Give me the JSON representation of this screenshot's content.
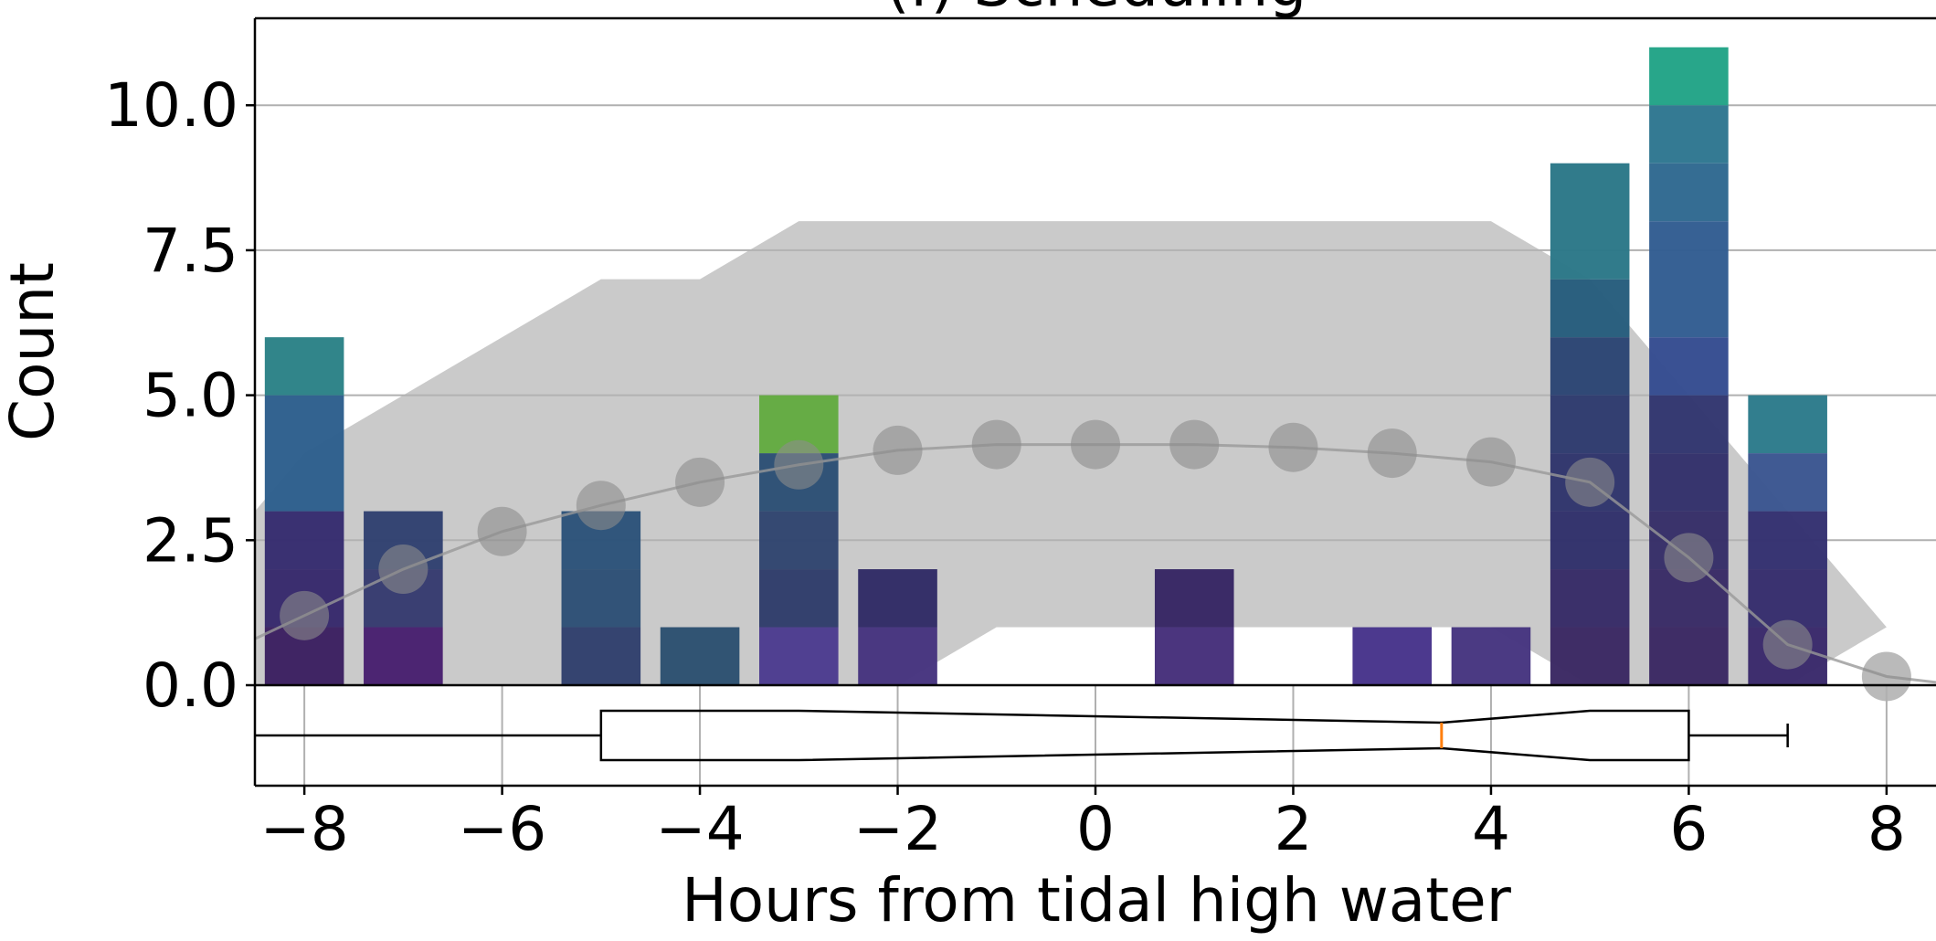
{
  "chart_data": {
    "type": "bar",
    "title": "(f) Scheduling",
    "xlabel": "Hours from tidal high water",
    "ylabel": "Count",
    "xlim": [
      -8.5,
      8.5
    ],
    "ylim": [
      0,
      11.5
    ],
    "grid": "horizontal on main panel, vertical on boxplot panel",
    "x_ticks": [
      "−8",
      "−6",
      "−4",
      "−2",
      "0",
      "2",
      "4",
      "6",
      "8"
    ],
    "x_tick_values": [
      -8,
      -6,
      -4,
      -2,
      0,
      2,
      4,
      6,
      8
    ],
    "y_ticks": [
      "0.0",
      "2.5",
      "5.0",
      "7.5",
      "10.0"
    ],
    "y_tick_values": [
      0,
      2.5,
      5,
      7.5,
      10
    ],
    "bars": [
      {
        "x": -8,
        "total": 6,
        "segments": [
          {
            "upto": 1,
            "color": "#3b1f60"
          },
          {
            "upto": 2,
            "color": "#36286b"
          },
          {
            "upto": 3,
            "color": "#352b6e"
          },
          {
            "upto": 5,
            "color": "#2c5e8c"
          },
          {
            "upto": 6,
            "color": "#2a8186"
          }
        ]
      },
      {
        "x": -7,
        "total": 3,
        "segments": [
          {
            "upto": 1,
            "color": "#471f6e"
          },
          {
            "upto": 2,
            "color": "#353a6e"
          },
          {
            "upto": 3,
            "color": "#30406f"
          }
        ]
      },
      {
        "x": -5,
        "total": 3,
        "segments": [
          {
            "upto": 1,
            "color": "#2f3f6c"
          },
          {
            "upto": 2,
            "color": "#2c4e75"
          },
          {
            "upto": 3,
            "color": "#2b5279"
          }
        ]
      },
      {
        "x": -4,
        "total": 1,
        "segments": [
          {
            "upto": 1,
            "color": "#2b5070"
          }
        ]
      },
      {
        "x": -3,
        "total": 5,
        "segments": [
          {
            "upto": 1,
            "color": "#4b3b8e"
          },
          {
            "upto": 2,
            "color": "#2e3c6a"
          },
          {
            "upto": 3,
            "color": "#30446e"
          },
          {
            "upto": 4,
            "color": "#2b4e74"
          },
          {
            "upto": 5,
            "color": "#62aa40"
          }
        ]
      },
      {
        "x": -2,
        "total": 2,
        "segments": [
          {
            "upto": 1,
            "color": "#45337e"
          },
          {
            "upto": 2,
            "color": "#302a65"
          }
        ]
      },
      {
        "x": 1,
        "total": 2,
        "segments": [
          {
            "upto": 1,
            "color": "#452e7a"
          },
          {
            "upto": 2,
            "color": "#362563"
          }
        ]
      },
      {
        "x": 3,
        "total": 1,
        "segments": [
          {
            "upto": 1,
            "color": "#46338a"
          }
        ]
      },
      {
        "x": 4,
        "total": 1,
        "segments": [
          {
            "upto": 1,
            "color": "#45347f"
          }
        ]
      },
      {
        "x": 5,
        "total": 9,
        "segments": [
          {
            "upto": 1,
            "color": "#3a2762"
          },
          {
            "upto": 2,
            "color": "#362a66"
          },
          {
            "upto": 3,
            "color": "#30306a"
          },
          {
            "upto": 4,
            "color": "#2e346b"
          },
          {
            "upto": 5,
            "color": "#2d3a6d"
          },
          {
            "upto": 6,
            "color": "#2a4473"
          },
          {
            "upto": 7,
            "color": "#255c7c"
          },
          {
            "upto": 9,
            "color": "#2a7787"
          }
        ]
      },
      {
        "x": 6,
        "total": 11,
        "segments": [
          {
            "upto": 1,
            "color": "#3a2762"
          },
          {
            "upto": 2,
            "color": "#382a65"
          },
          {
            "upto": 3,
            "color": "#352d67"
          },
          {
            "upto": 4,
            "color": "#32306a"
          },
          {
            "upto": 5,
            "color": "#31356e"
          },
          {
            "upto": 6,
            "color": "#344b8f"
          },
          {
            "upto": 8,
            "color": "#315c91"
          },
          {
            "upto": 9,
            "color": "#2e6890"
          },
          {
            "upto": 10,
            "color": "#2d7690"
          },
          {
            "upto": 11,
            "color": "#21a386"
          }
        ]
      },
      {
        "x": 7,
        "total": 5,
        "segments": [
          {
            "upto": 1,
            "color": "#39286a"
          },
          {
            "upto": 2,
            "color": "#352c6c"
          },
          {
            "upto": 3,
            "color": "#333070"
          },
          {
            "upto": 4,
            "color": "#3a5590"
          },
          {
            "upto": 5,
            "color": "#2b7a8a"
          }
        ]
      }
    ],
    "band": {
      "x": [
        -8.5,
        -8,
        -7,
        -6,
        -5,
        -4,
        -3,
        -2,
        -1,
        0,
        1,
        2,
        3,
        4,
        5,
        6,
        7,
        8,
        8.5
      ],
      "lower": [
        0,
        0,
        0,
        0,
        0,
        0,
        0,
        0,
        1,
        1,
        1,
        1,
        1,
        1,
        0,
        0,
        0,
        1,
        1
      ],
      "upper": [
        3,
        4,
        5,
        6,
        7,
        7,
        8,
        8,
        8,
        8,
        8,
        8,
        8,
        8,
        7,
        5,
        3,
        1,
        1
      ],
      "color": "#b3b3b3"
    },
    "mean_line": {
      "x": [
        -8.5,
        -8,
        -7,
        -6,
        -5,
        -4,
        -3,
        -2,
        -1,
        0,
        1,
        2,
        3,
        4,
        5,
        6,
        7,
        8,
        8.5
      ],
      "y": [
        0.8,
        1.2,
        2.0,
        2.65,
        3.1,
        3.5,
        3.8,
        4.05,
        4.15,
        4.15,
        4.15,
        4.1,
        4.0,
        3.85,
        3.5,
        2.2,
        0.7,
        0.15,
        0.05
      ],
      "color": "#999999"
    },
    "boxplot": {
      "whisker_low": -8.5,
      "q1": -5,
      "notch_low": -3,
      "median": 3.5,
      "notch_high": 5,
      "q3": 6,
      "whisker_high": 7,
      "median_color": "#ff7f0e"
    }
  }
}
